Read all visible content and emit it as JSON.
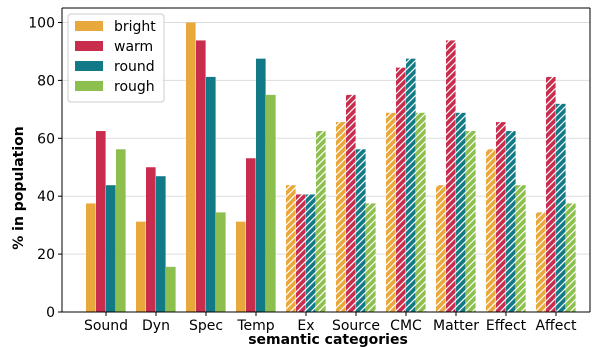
{
  "chart_data": {
    "type": "bar",
    "xlabel": "semantic categories",
    "ylabel": "% in population",
    "ylim": [
      0,
      105
    ],
    "yticks": [
      0,
      20,
      40,
      60,
      80,
      100
    ],
    "grid": "horizontal",
    "legend_position": "top-left",
    "categories": [
      "Sound",
      "Dyn",
      "Spec",
      "Temp",
      "Ex",
      "Source",
      "CMC",
      "Matter",
      "Effect",
      "Affect"
    ],
    "hatched_categories": [
      "Ex",
      "Source",
      "CMC",
      "Matter",
      "Effect",
      "Affect"
    ],
    "series": [
      {
        "name": "bright",
        "color": "#E8A83B",
        "values": [
          37.5,
          31.2,
          100,
          31.2,
          43.8,
          65.6,
          68.8,
          43.8,
          56.2,
          34.4
        ]
      },
      {
        "name": "warm",
        "color": "#C92D4E",
        "values": [
          62.5,
          50,
          93.8,
          53.1,
          40.6,
          75,
          84.4,
          93.8,
          65.6,
          81.2
        ]
      },
      {
        "name": "round",
        "color": "#117A86",
        "values": [
          43.8,
          46.9,
          81.2,
          87.5,
          40.6,
          56.2,
          87.5,
          68.8,
          62.5,
          71.9
        ]
      },
      {
        "name": "rough",
        "color": "#8DBF4E",
        "values": [
          56.2,
          15.6,
          34.4,
          75,
          62.5,
          37.5,
          68.8,
          62.5,
          43.8,
          37.5
        ]
      }
    ]
  }
}
